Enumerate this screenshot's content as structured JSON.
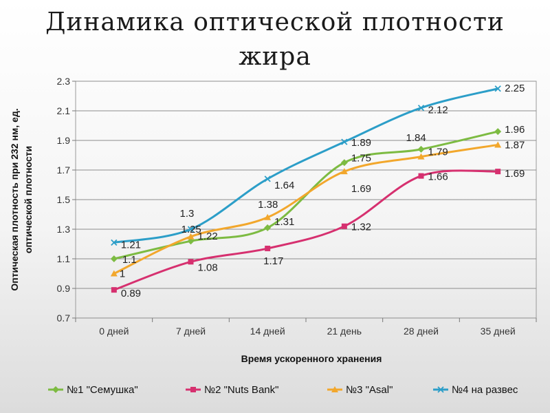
{
  "slide": {
    "title": "Динамика оптической плотности жира"
  },
  "chart_data": {
    "type": "line",
    "title": "Динамика оптической плотности жира",
    "xlabel": "Время ускоренного хранения",
    "ylabel": "Оптическая плотность при 232 нм, ед. оптической плотности",
    "ylabel_lines": [
      "Оптическая плотность при 232 нм, ед.",
      "оптической плотности"
    ],
    "categories": [
      "0 дней",
      "7 дней",
      "14 дней",
      "21 день",
      "28 дней",
      "35 дней"
    ],
    "ylim": [
      0.7,
      2.3
    ],
    "yticks": [
      "0.7",
      "0.9",
      "1.1",
      "1.3",
      "1.5",
      "1.7",
      "1.9",
      "2.1",
      "2.3"
    ],
    "grid": true,
    "legend_position": "bottom",
    "series": [
      {
        "name": "№1 \"Семушка\"",
        "values": [
          1.1,
          1.22,
          1.31,
          1.75,
          1.84,
          1.96
        ],
        "labels": [
          "1.1",
          "1.22",
          "1.31",
          "1.75",
          "1.84",
          "1.96"
        ],
        "color": "#7dbb42",
        "marker": "diamond"
      },
      {
        "name": "№2 \"Nuts Bank\"",
        "values": [
          0.89,
          1.08,
          1.17,
          1.32,
          1.66,
          1.69
        ],
        "labels": [
          "0.89",
          "1.08",
          "1.17",
          "1.32",
          "1.66",
          "1.69"
        ],
        "color": "#d6306f",
        "marker": "square"
      },
      {
        "name": "№3 \"Asal\"",
        "values": [
          1,
          1.25,
          1.38,
          1.69,
          1.79,
          1.87
        ],
        "labels": [
          "1",
          "1.25",
          "1.38",
          "1.69",
          "1.79",
          "1.87"
        ],
        "color": "#f2a72c",
        "marker": "triangle"
      },
      {
        "name": "№4 на развес",
        "values": [
          1.21,
          1.3,
          1.64,
          1.89,
          2.12,
          2.25
        ],
        "labels": [
          "1.21",
          "1.3",
          "1.64",
          "1.89",
          "2.12",
          "2.25"
        ],
        "color": "#2c9ec8",
        "marker": "x"
      }
    ]
  }
}
